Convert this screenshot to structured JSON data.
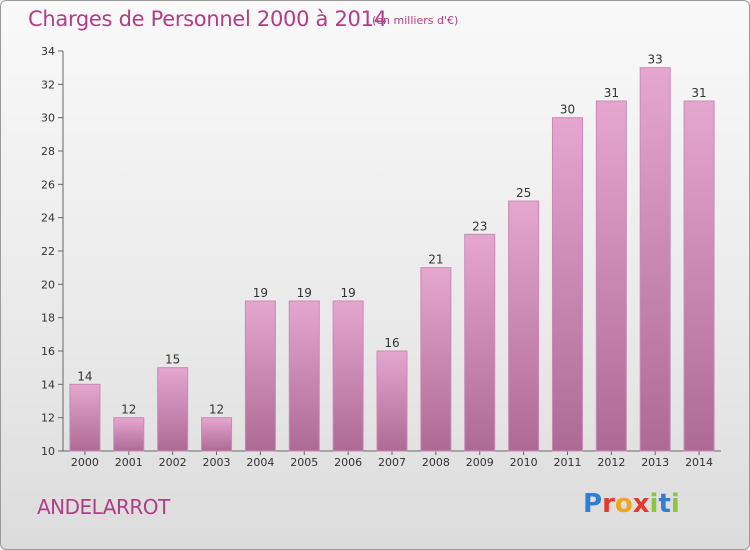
{
  "header": {
    "title": "Charges de Personnel 2000 à 2014",
    "unit": "(en milliers d'€)"
  },
  "footer": {
    "commune": "ANDELARROT"
  },
  "logo": {
    "letters": [
      {
        "ch": "P",
        "color": "#2f7fd4"
      },
      {
        "ch": "r",
        "color": "#e8382a"
      },
      {
        "ch": "o",
        "color": "#f4a31c"
      },
      {
        "ch": "x",
        "color": "#e8382a"
      },
      {
        "ch": "i",
        "color": "#8cc63f"
      },
      {
        "ch": "t",
        "color": "#2f7fd4"
      },
      {
        "ch": "i",
        "color": "#8cc63f"
      }
    ]
  },
  "colors": {
    "bar_top": "#e5a6d0",
    "bar_bottom": "#ad6a95",
    "bar_edge": "#c98ab5",
    "text": "#333333",
    "accent": "#b03e86"
  },
  "chart_data": {
    "type": "bar",
    "categories": [
      "2000",
      "2001",
      "2002",
      "2003",
      "2004",
      "2005",
      "2006",
      "2007",
      "2008",
      "2009",
      "2010",
      "2011",
      "2012",
      "2013",
      "2014"
    ],
    "values": [
      14,
      12,
      15,
      12,
      19,
      19,
      19,
      16,
      21,
      23,
      25,
      30,
      31,
      33,
      31
    ],
    "ylim": [
      10,
      34
    ],
    "yticks": [
      10,
      12,
      14,
      16,
      18,
      20,
      22,
      24,
      26,
      28,
      30,
      32,
      34
    ],
    "grid": false
  }
}
